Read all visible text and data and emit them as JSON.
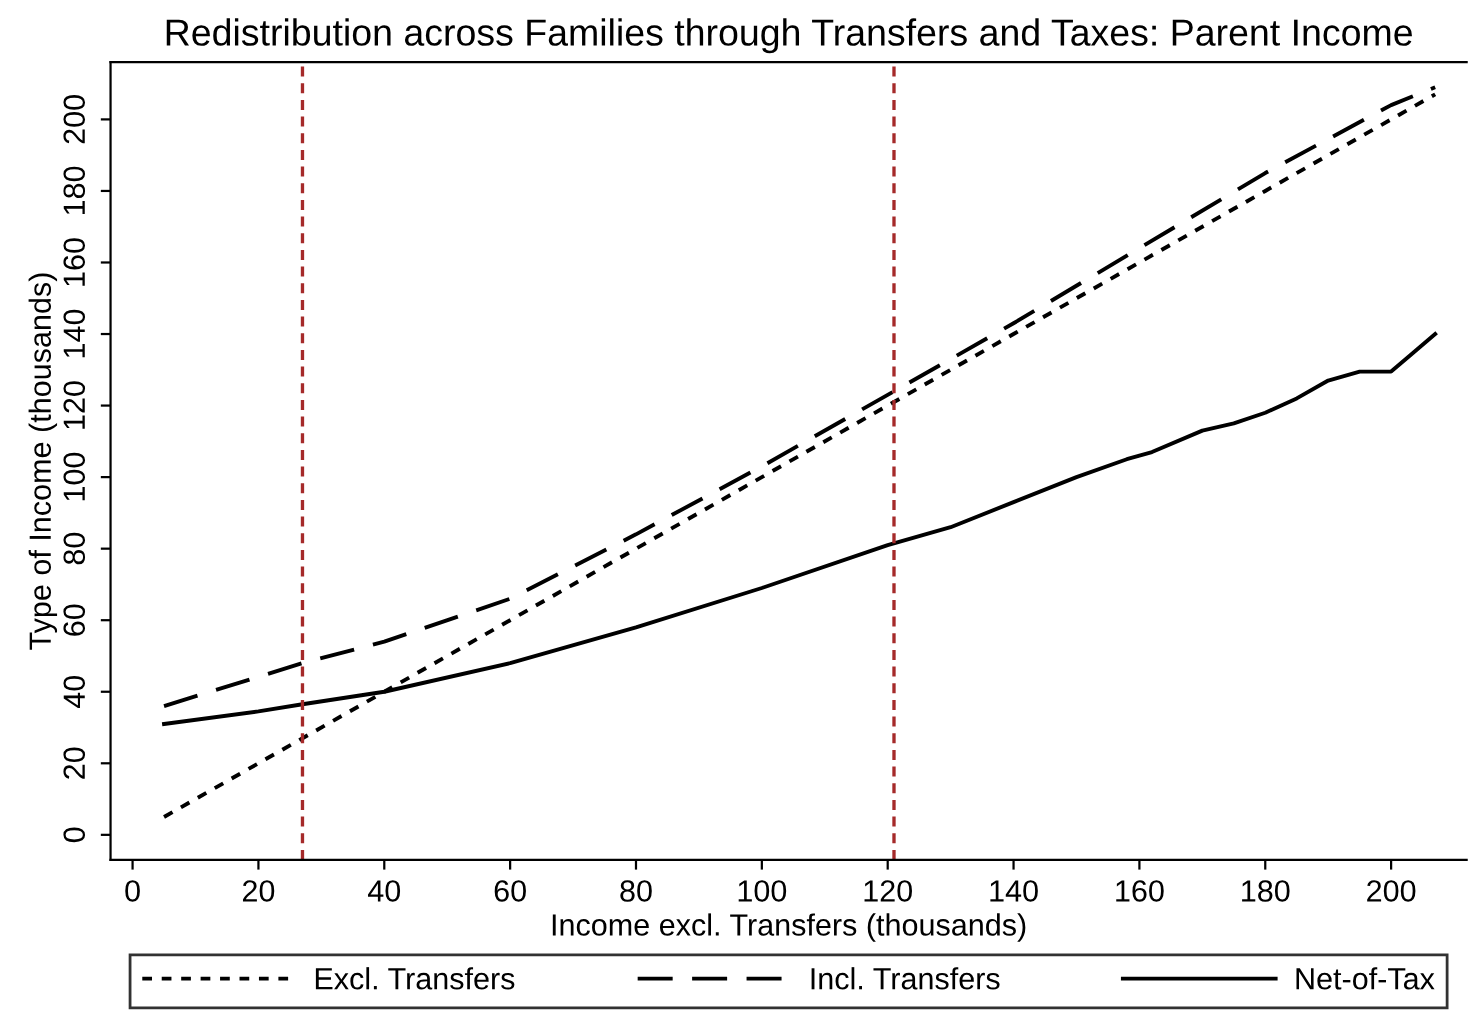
{
  "chart_data": {
    "type": "line",
    "title": "Redistribution across Families through Transfers and Taxes: Parent Income",
    "xlabel": "Income excl. Transfers (thousands)",
    "ylabel": "Type of Income (thousands)",
    "xlim": [
      -3.5,
      212
    ],
    "ylim": [
      -7,
      216
    ],
    "xticks": [
      0,
      20,
      40,
      60,
      80,
      100,
      120,
      140,
      160,
      180,
      200
    ],
    "yticks": [
      0,
      20,
      40,
      60,
      80,
      100,
      120,
      140,
      160,
      180,
      200
    ],
    "grid": false,
    "legend": "bottom",
    "marker": "none",
    "series": [
      {
        "name": "Excl. Transfers",
        "color": "#000000",
        "line_style": "dotted",
        "x": [
          5,
          27,
          40,
          60,
          80,
          100,
          120,
          140,
          160,
          180,
          200,
          207
        ],
        "values": [
          5,
          27,
          40,
          60,
          80,
          100,
          120,
          140,
          160,
          180,
          200,
          207
        ]
      },
      {
        "name": "Incl. Transfers",
        "color": "#000000",
        "line_style": "dashed",
        "x": [
          5,
          27,
          40,
          60,
          80,
          100,
          120,
          140,
          160,
          180,
          200,
          207
        ],
        "values": [
          36,
          48,
          54,
          66,
          84,
          103,
          123,
          143,
          164,
          185,
          204,
          209
        ]
      },
      {
        "name": "Net-of-Tax",
        "color": "#000000",
        "line_style": "solid",
        "x": [
          5,
          20,
          27,
          40,
          60,
          80,
          100,
          120,
          130,
          140,
          150,
          158,
          162,
          170,
          175,
          180,
          185,
          190,
          195,
          200,
          203,
          207
        ],
        "values": [
          31,
          34.5,
          36.5,
          40,
          48,
          58,
          69,
          81,
          86,
          93,
          100,
          105,
          107,
          113,
          115,
          118,
          122,
          127,
          129.5,
          129.5,
          134,
          140
        ]
      }
    ],
    "ref_lines": [
      {
        "axis": "x",
        "value": 27,
        "color": "#a52a2a",
        "line_style": "dashed"
      },
      {
        "axis": "x",
        "value": 121,
        "color": "#a52a2a",
        "line_style": "dashed"
      }
    ]
  }
}
